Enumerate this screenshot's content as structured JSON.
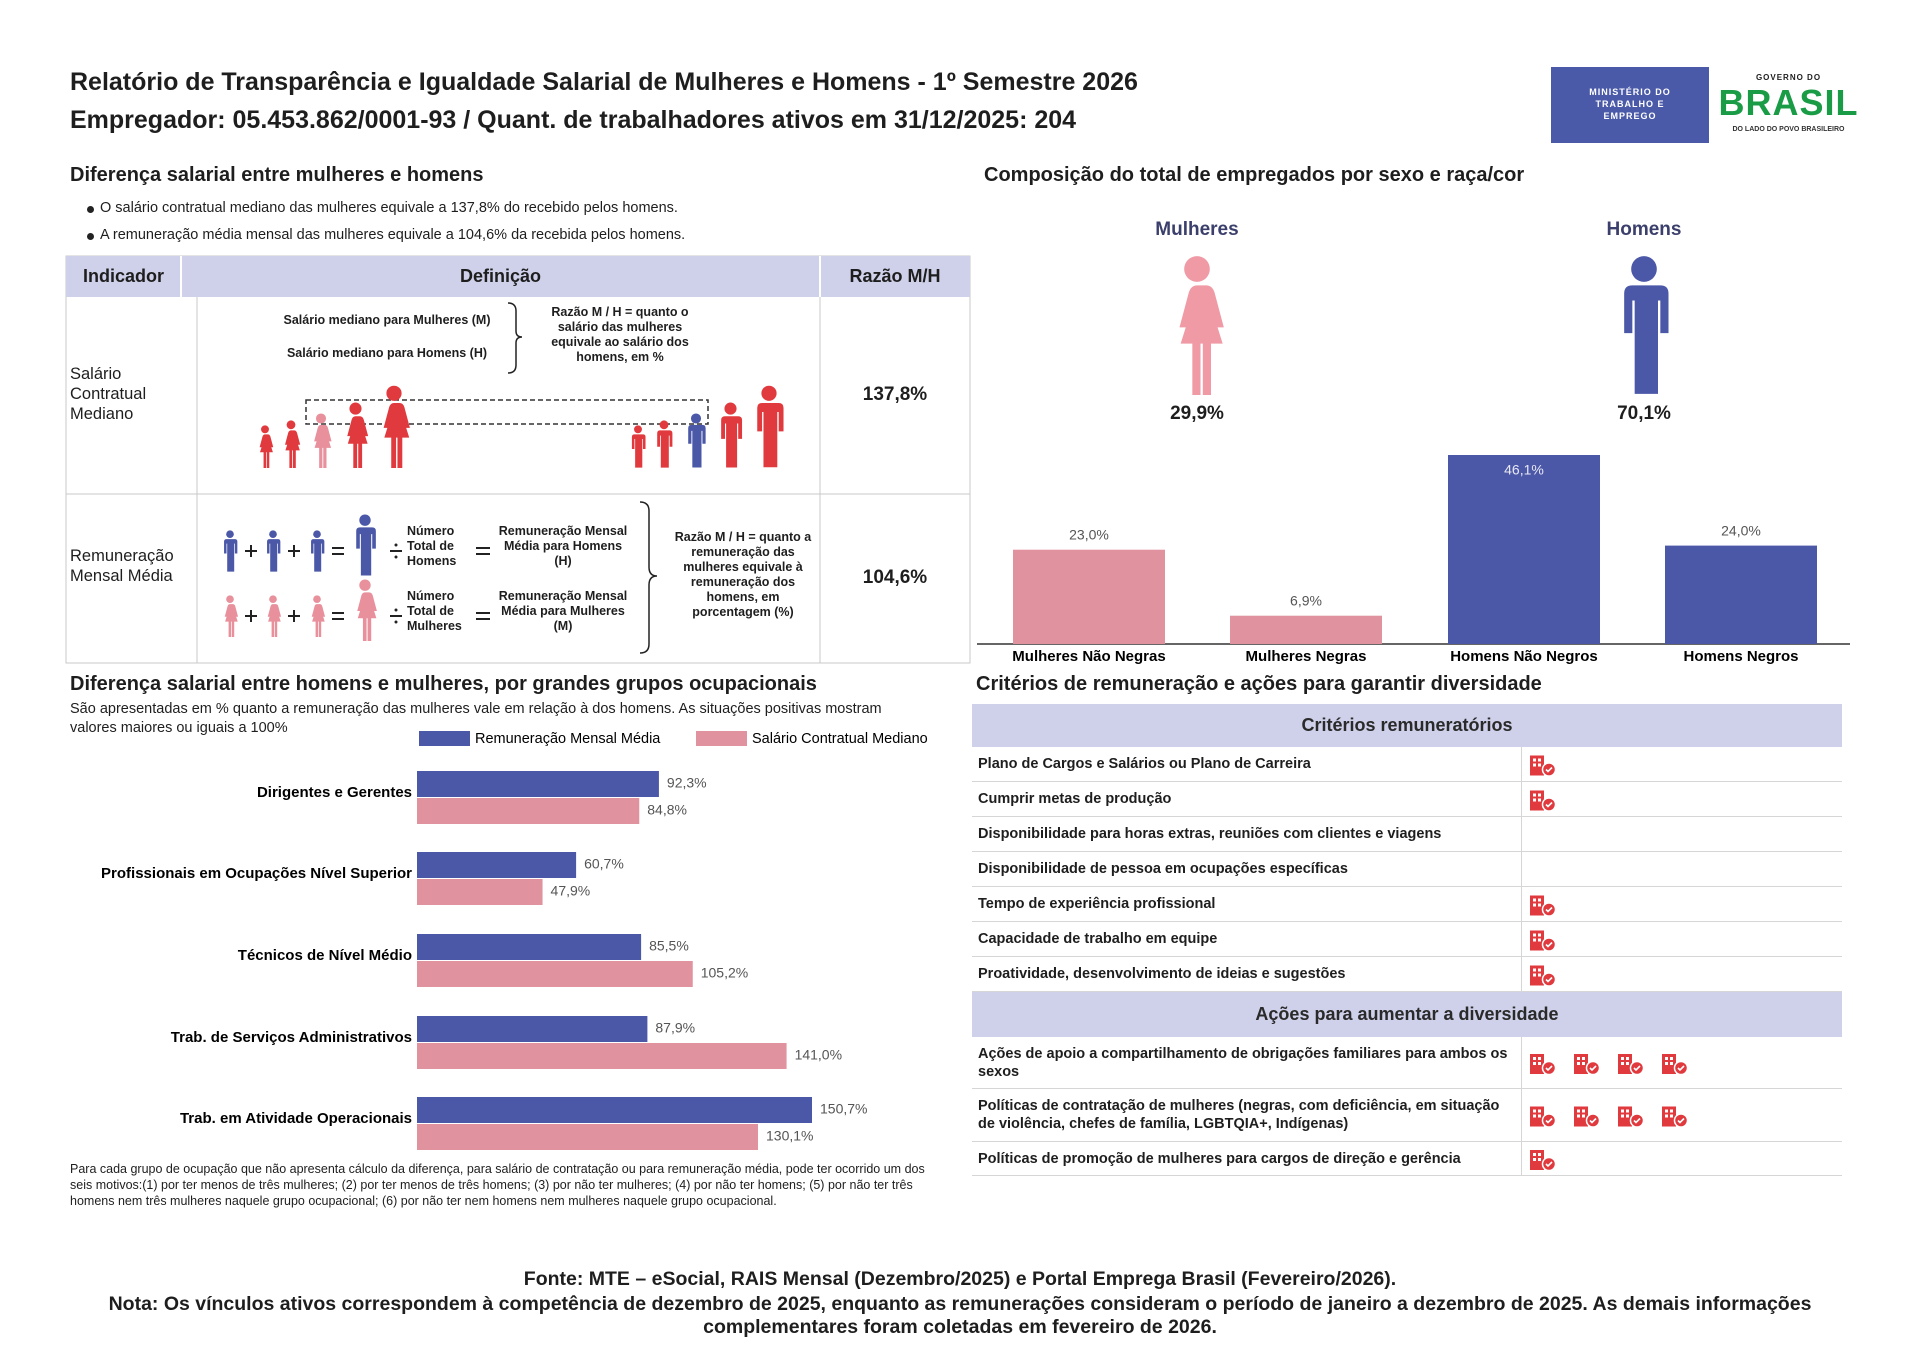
{
  "header": {
    "title": "Relatório de Transparência e Igualdade Salarial de Mulheres e Homens - 1º Semestre 2026",
    "subtitle": "Empregador: 05.453.862/0001-93 / Quant. de trabalhadores ativos em 31/12/2025: 204",
    "ministry_logo": "MINISTÉRIO DO TRABALHO E EMPREGO",
    "gov_logo_top": "GOVERNO DO",
    "gov_logo_word": "BRASIL",
    "gov_logo_bottom": "DO LADO DO POVO BRASILEIRO"
  },
  "salary_gap": {
    "title": "Diferença salarial entre mulheres e homens",
    "bullets": [
      "O salário contratual mediano das mulheres equivale a 137,8% do recebido pelos homens.",
      "A remuneração média mensal das mulheres equivale a 104,6% da recebida pelos homens."
    ],
    "table": {
      "headers": [
        "Indicador",
        "Definição",
        "Razão M/H"
      ],
      "median_row": {
        "indicator": "Salário Contratual Mediano",
        "women_label": "Salário mediano para Mulheres (M)",
        "men_label": "Salário mediano para Homens (H)",
        "explanation": "Razão M / H = quanto o salário das mulheres equivale ao salário dos homens, em %",
        "ratio": "137,8%"
      },
      "mean_row": {
        "indicator": "Remuneração Mensal Média",
        "men_count": "Número Total de Homens",
        "men_result": "Remuneração Mensal Média para Homens (H)",
        "women_count": "Número Total de Mulheres",
        "women_result": "Remuneração Mensal Média para Mulheres (M)",
        "explanation": "Razão M / H = quanto a remuneração das mulheres equivale à remuneração dos homens, em porcentagem (%)",
        "ratio": "104,6%"
      }
    }
  },
  "composition": {
    "groups": [
      {
        "name": "Mulheres",
        "share": "29,9%"
      },
      {
        "name": "Homens",
        "share": "70,1%"
      }
    ]
  },
  "chart_data": [
    {
      "type": "bar",
      "title": "Composição do total de empregados por sexo e raça/cor",
      "categories": [
        "Mulheres Não Negras",
        "Mulheres Negras",
        "Homens Não Negros",
        "Homens Negros"
      ],
      "values": [
        23.0,
        6.9,
        46.1,
        24.0
      ],
      "value_labels": [
        "23,0%",
        "6,9%",
        "46,1%",
        "24,0%"
      ],
      "colors": [
        "#e0929f",
        "#e0929f",
        "#4b58a8",
        "#4b58a8"
      ]
    },
    {
      "type": "hbar",
      "title": "Diferença salarial entre homens e mulheres, por grandes grupos ocupacionais",
      "subtitle": "São apresentadas em % quanto a remuneração das mulheres vale em relação à dos homens. As situações positivas mostram valores maiores ou iguais a 100%",
      "categories": [
        "Dirigentes e Gerentes",
        "Profissionais em Ocupações Nível Superior",
        "Técnicos de Nível Médio",
        "Trab. de Serviços Administrativos",
        "Trab. em Atividade Operacionais"
      ],
      "series": [
        {
          "name": "Remuneração Mensal Média",
          "color": "#4b58a8",
          "values": [
            92.3,
            60.7,
            85.5,
            87.9,
            150.7
          ],
          "value_labels": [
            "92,3%",
            "60,7%",
            "85,5%",
            "87,9%",
            "150,7%"
          ]
        },
        {
          "name": "Salário Contratual Mediano",
          "color": "#e0929f",
          "values": [
            84.8,
            47.9,
            105.2,
            141.0,
            130.1
          ],
          "value_labels": [
            "84,8%",
            "47,9%",
            "105,2%",
            "141,0%",
            "130,1%"
          ]
        }
      ],
      "legend": "top",
      "note": "Para cada grupo de ocupação que não apresenta cálculo da diferença, para salário de contratação ou para remuneração média, pode ter ocorrido um dos seis motivos:(1) por ter menos de três mulheres; (2) por ter menos de três homens; (3) por não ter mulheres; (4) por não ter homens; (5) por não ter três homens nem três mulheres naquele grupo ocupacional; (6) por não ter nem homens nem mulheres naquele grupo ocupacional."
    }
  ],
  "criteria": {
    "title": "Critérios de remuneração e ações para garantir diversidade",
    "sections": [
      {
        "heading": "Critérios remuneratórios",
        "rows": [
          {
            "label": "Plano de Cargos e Salários ou Plano de Carreira",
            "icons": 1
          },
          {
            "label": "Cumprir metas de produção",
            "icons": 1
          },
          {
            "label": "Disponibilidade para horas extras, reuniões com clientes e viagens",
            "icons": 0
          },
          {
            "label": "Disponibilidade de pessoa em ocupações específicas",
            "icons": 0
          },
          {
            "label": "Tempo de experiência profissional",
            "icons": 1
          },
          {
            "label": "Capacidade de trabalho em equipe",
            "icons": 1
          },
          {
            "label": "Proatividade, desenvolvimento de ideias e sugestões",
            "icons": 1
          }
        ]
      },
      {
        "heading": "Ações para aumentar a diversidade",
        "rows": [
          {
            "label": "Ações de apoio a compartilhamento de obrigações familiares para ambos os sexos",
            "icons": 4
          },
          {
            "label": "Políticas de contratação de mulheres (negras, com deficiência, em situação de violência, chefes de família, LGBTQIA+, Indígenas)",
            "icons": 4
          },
          {
            "label": "Políticas de promoção de mulheres para cargos de direção e gerência",
            "icons": 1
          }
        ]
      }
    ]
  },
  "footer": {
    "source": "Fonte: MTE – eSocial, RAIS Mensal (Dezembro/2025) e Portal Emprega Brasil (Fevereiro/2026).",
    "note": "Nota: Os vínculos ativos correspondem à competência de dezembro de 2025, enquanto as remunerações consideram o período de janeiro a dezembro de 2025. As demais informações complementares foram coletadas em fevereiro de 2026."
  }
}
